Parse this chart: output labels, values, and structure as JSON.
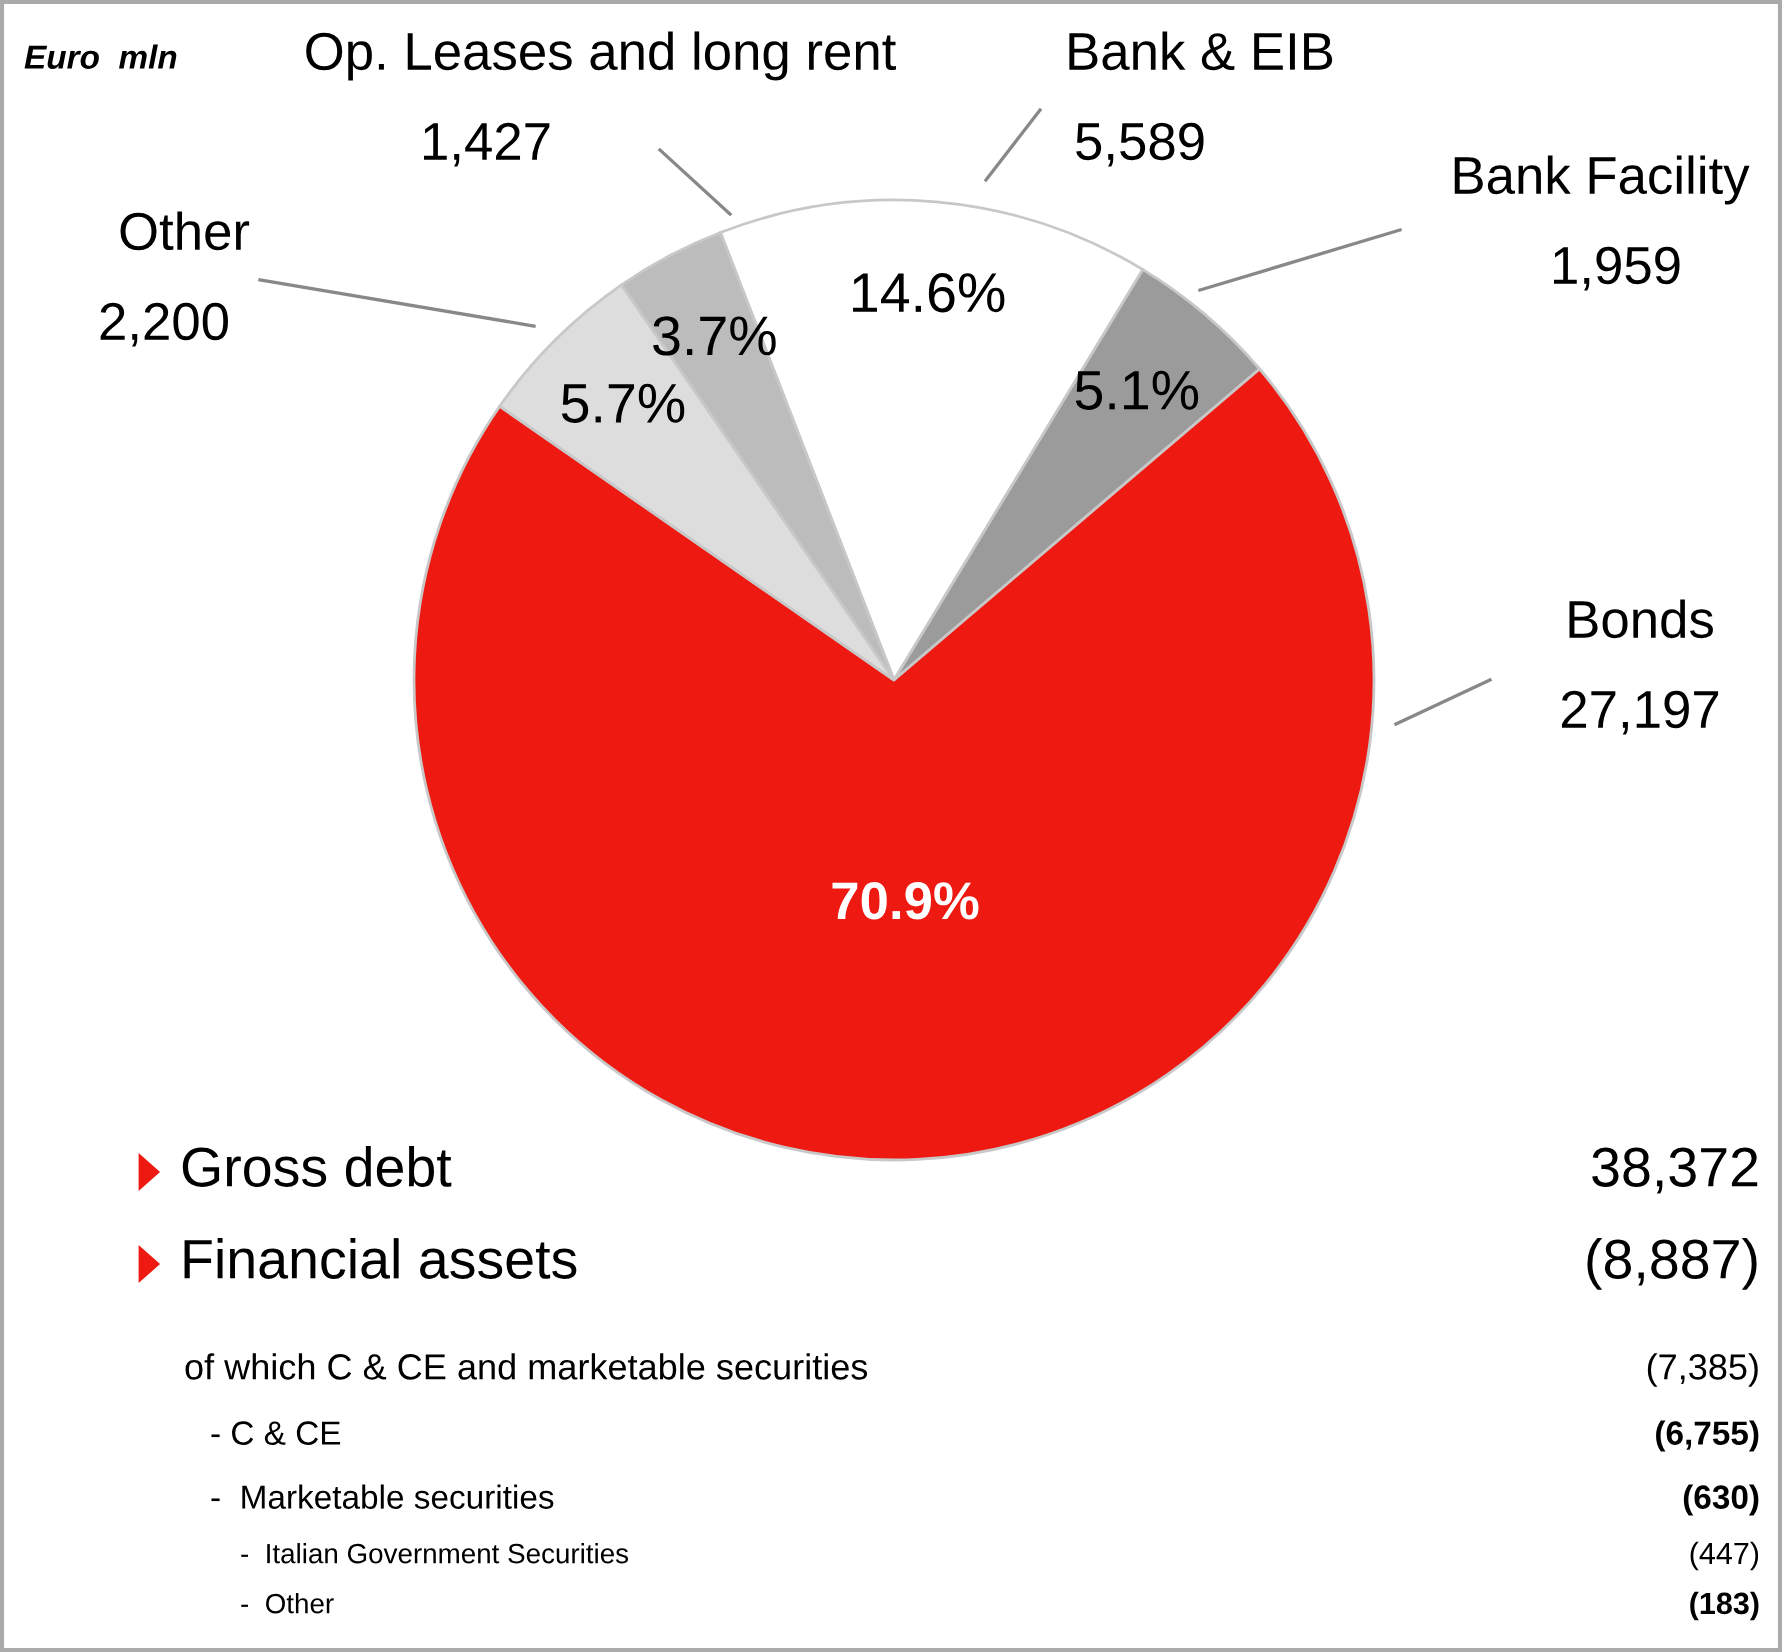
{
  "chart_data": {
    "type": "pie",
    "categories": [
      "Bank & EIB",
      "Bank Facility",
      "Bonds",
      "Other",
      "Op. Leases and long rent"
    ],
    "values": [
      5589,
      1959,
      27197,
      2200,
      1427
    ],
    "colors": [
      "#ffffff",
      "#9b9b9b",
      "#ee1a12",
      "#dddddd",
      "#bcbcbc"
    ],
    "value_labels": [
      "5,589",
      "1,959",
      "27,197",
      "2,200",
      "1,427"
    ],
    "annotations": [
      "Euro  mln",
      {
        "text": "14.6%",
        "x": "Bank & EIB"
      },
      {
        "text": "5.1%",
        "x": "Bank Facility"
      },
      {
        "text": "70.9%",
        "x": "Bonds"
      },
      {
        "text": "5.7%",
        "x": "Other"
      },
      {
        "text": "3.7%",
        "x": "Op. Leases and long rent"
      },
      "Gross debt",
      "38,372",
      "Financial assets",
      "(8,887)",
      "of which C & CE and marketable securities",
      "(7,385)",
      "- C & CE",
      "(6,755)",
      "-  Marketable securities",
      "(630)",
      "-  Italian Government Securities",
      "(447)",
      "-  Other",
      "(183)"
    ]
  }
}
